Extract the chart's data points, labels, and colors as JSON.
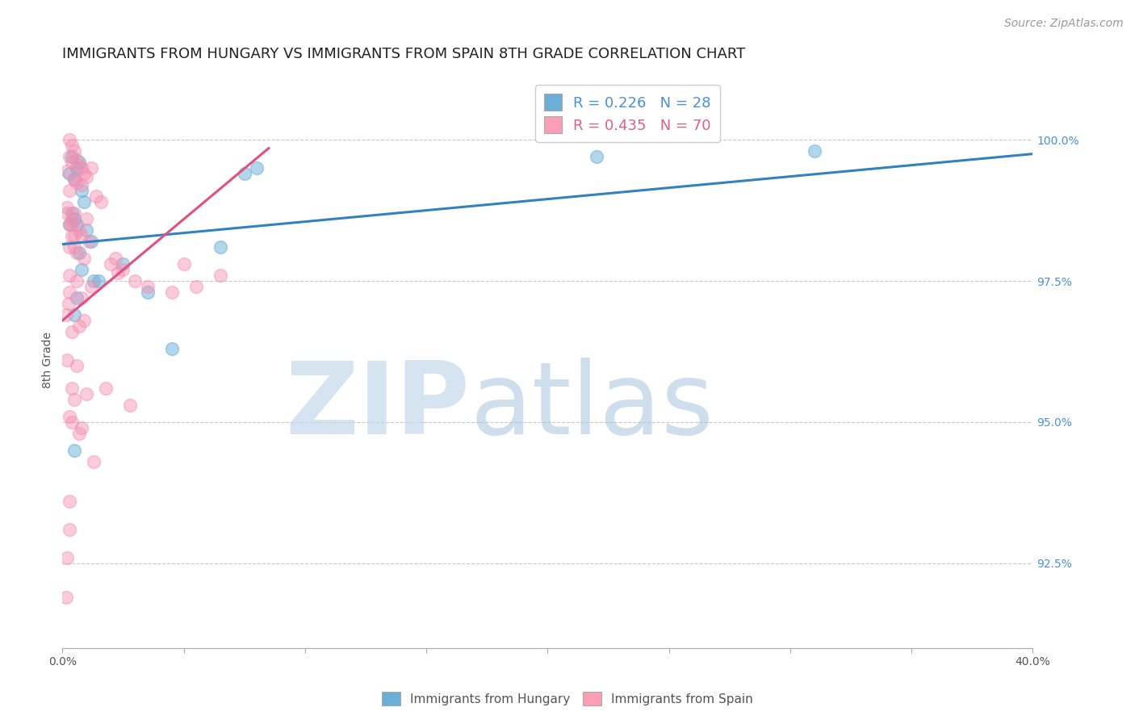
{
  "title": "IMMIGRANTS FROM HUNGARY VS IMMIGRANTS FROM SPAIN 8TH GRADE CORRELATION CHART",
  "source": "Source: ZipAtlas.com",
  "ylabel": "8th Grade",
  "x_min": 0.0,
  "x_max": 40.0,
  "y_min": 91.0,
  "y_max": 101.2,
  "yticks": [
    92.5,
    95.0,
    97.5,
    100.0
  ],
  "ytick_labels": [
    "92.5%",
    "95.0%",
    "97.5%",
    "100.0%"
  ],
  "xticks": [
    0.0,
    5.0,
    10.0,
    15.0,
    20.0,
    25.0,
    30.0,
    35.0,
    40.0
  ],
  "xtick_labels_show": [
    "0.0%",
    "40.0%"
  ],
  "legend_blue_label": "R = 0.226   N = 28",
  "legend_pink_label": "R = 0.435   N = 70",
  "legend_blue_color": "#6baed6",
  "legend_pink_color": "#fa9fb5",
  "blue_scatter_color": "#6baed6",
  "pink_scatter_color": "#f48fb1",
  "blue_line_color": "#3182bd",
  "pink_line_color": "#e05080",
  "title_fontsize": 13,
  "axis_label_fontsize": 10,
  "tick_fontsize": 10,
  "legend_fontsize": 13,
  "source_fontsize": 10,
  "blue_dots_x": [
    0.4,
    0.6,
    0.7,
    0.3,
    0.5,
    0.8,
    0.9,
    0.4,
    0.6,
    1.0,
    1.2,
    0.5,
    0.7,
    0.8,
    1.5,
    2.5,
    6.5,
    3.5,
    0.3,
    0.6,
    1.3,
    0.5,
    4.5,
    0.5,
    8.0,
    7.5,
    31.0,
    22.0
  ],
  "blue_dots_y": [
    99.7,
    99.5,
    99.6,
    99.4,
    99.3,
    99.1,
    98.9,
    98.7,
    98.5,
    98.4,
    98.2,
    98.6,
    98.0,
    97.7,
    97.5,
    97.8,
    98.1,
    97.3,
    98.5,
    97.2,
    97.5,
    96.9,
    96.3,
    94.5,
    99.5,
    99.4,
    99.8,
    99.7
  ],
  "pink_dots_x": [
    0.3,
    0.4,
    0.5,
    0.3,
    0.6,
    0.4,
    0.7,
    0.8,
    0.2,
    0.9,
    1.0,
    1.2,
    0.5,
    0.6,
    0.8,
    0.3,
    1.4,
    1.6,
    0.2,
    0.5,
    1.0,
    0.4,
    0.7,
    0.8,
    1.1,
    0.3,
    0.6,
    0.9,
    2.0,
    2.5,
    2.3,
    3.0,
    3.5,
    4.5,
    5.5,
    6.5,
    0.2,
    0.4,
    0.3,
    0.5,
    0.8,
    0.3,
    1.2,
    0.6,
    0.15,
    0.9,
    0.7,
    0.4,
    0.2,
    0.6,
    0.4,
    1.0,
    0.5,
    0.3,
    0.4,
    0.8,
    0.7,
    1.8,
    2.8,
    0.2,
    0.3,
    1.3,
    0.25,
    2.2,
    0.4,
    0.3,
    0.5,
    5.0,
    0.15,
    0.3
  ],
  "pink_dots_y": [
    100.0,
    99.9,
    99.8,
    99.7,
    99.65,
    99.6,
    99.55,
    99.5,
    99.45,
    99.4,
    99.35,
    99.5,
    99.3,
    99.25,
    99.2,
    99.1,
    99.0,
    98.9,
    98.8,
    98.7,
    98.6,
    98.5,
    98.4,
    98.3,
    98.2,
    98.1,
    98.0,
    97.9,
    97.8,
    97.7,
    97.65,
    97.5,
    97.4,
    97.3,
    97.4,
    97.6,
    98.7,
    98.6,
    98.5,
    98.3,
    97.2,
    97.3,
    97.4,
    97.5,
    96.9,
    96.8,
    96.7,
    96.6,
    96.1,
    96.0,
    95.6,
    95.5,
    95.4,
    95.1,
    95.0,
    94.9,
    94.8,
    95.6,
    95.3,
    92.6,
    93.6,
    94.3,
    97.1,
    97.9,
    98.3,
    97.6,
    98.1,
    97.8,
    91.9,
    93.1
  ],
  "blue_trend_x": [
    0.0,
    40.0
  ],
  "blue_trend_y": [
    98.15,
    99.75
  ],
  "pink_trend_x": [
    0.0,
    8.5
  ],
  "pink_trend_y": [
    96.8,
    99.85
  ],
  "bottom_legend_blue": "Immigrants from Hungary",
  "bottom_legend_pink": "Immigrants from Spain"
}
